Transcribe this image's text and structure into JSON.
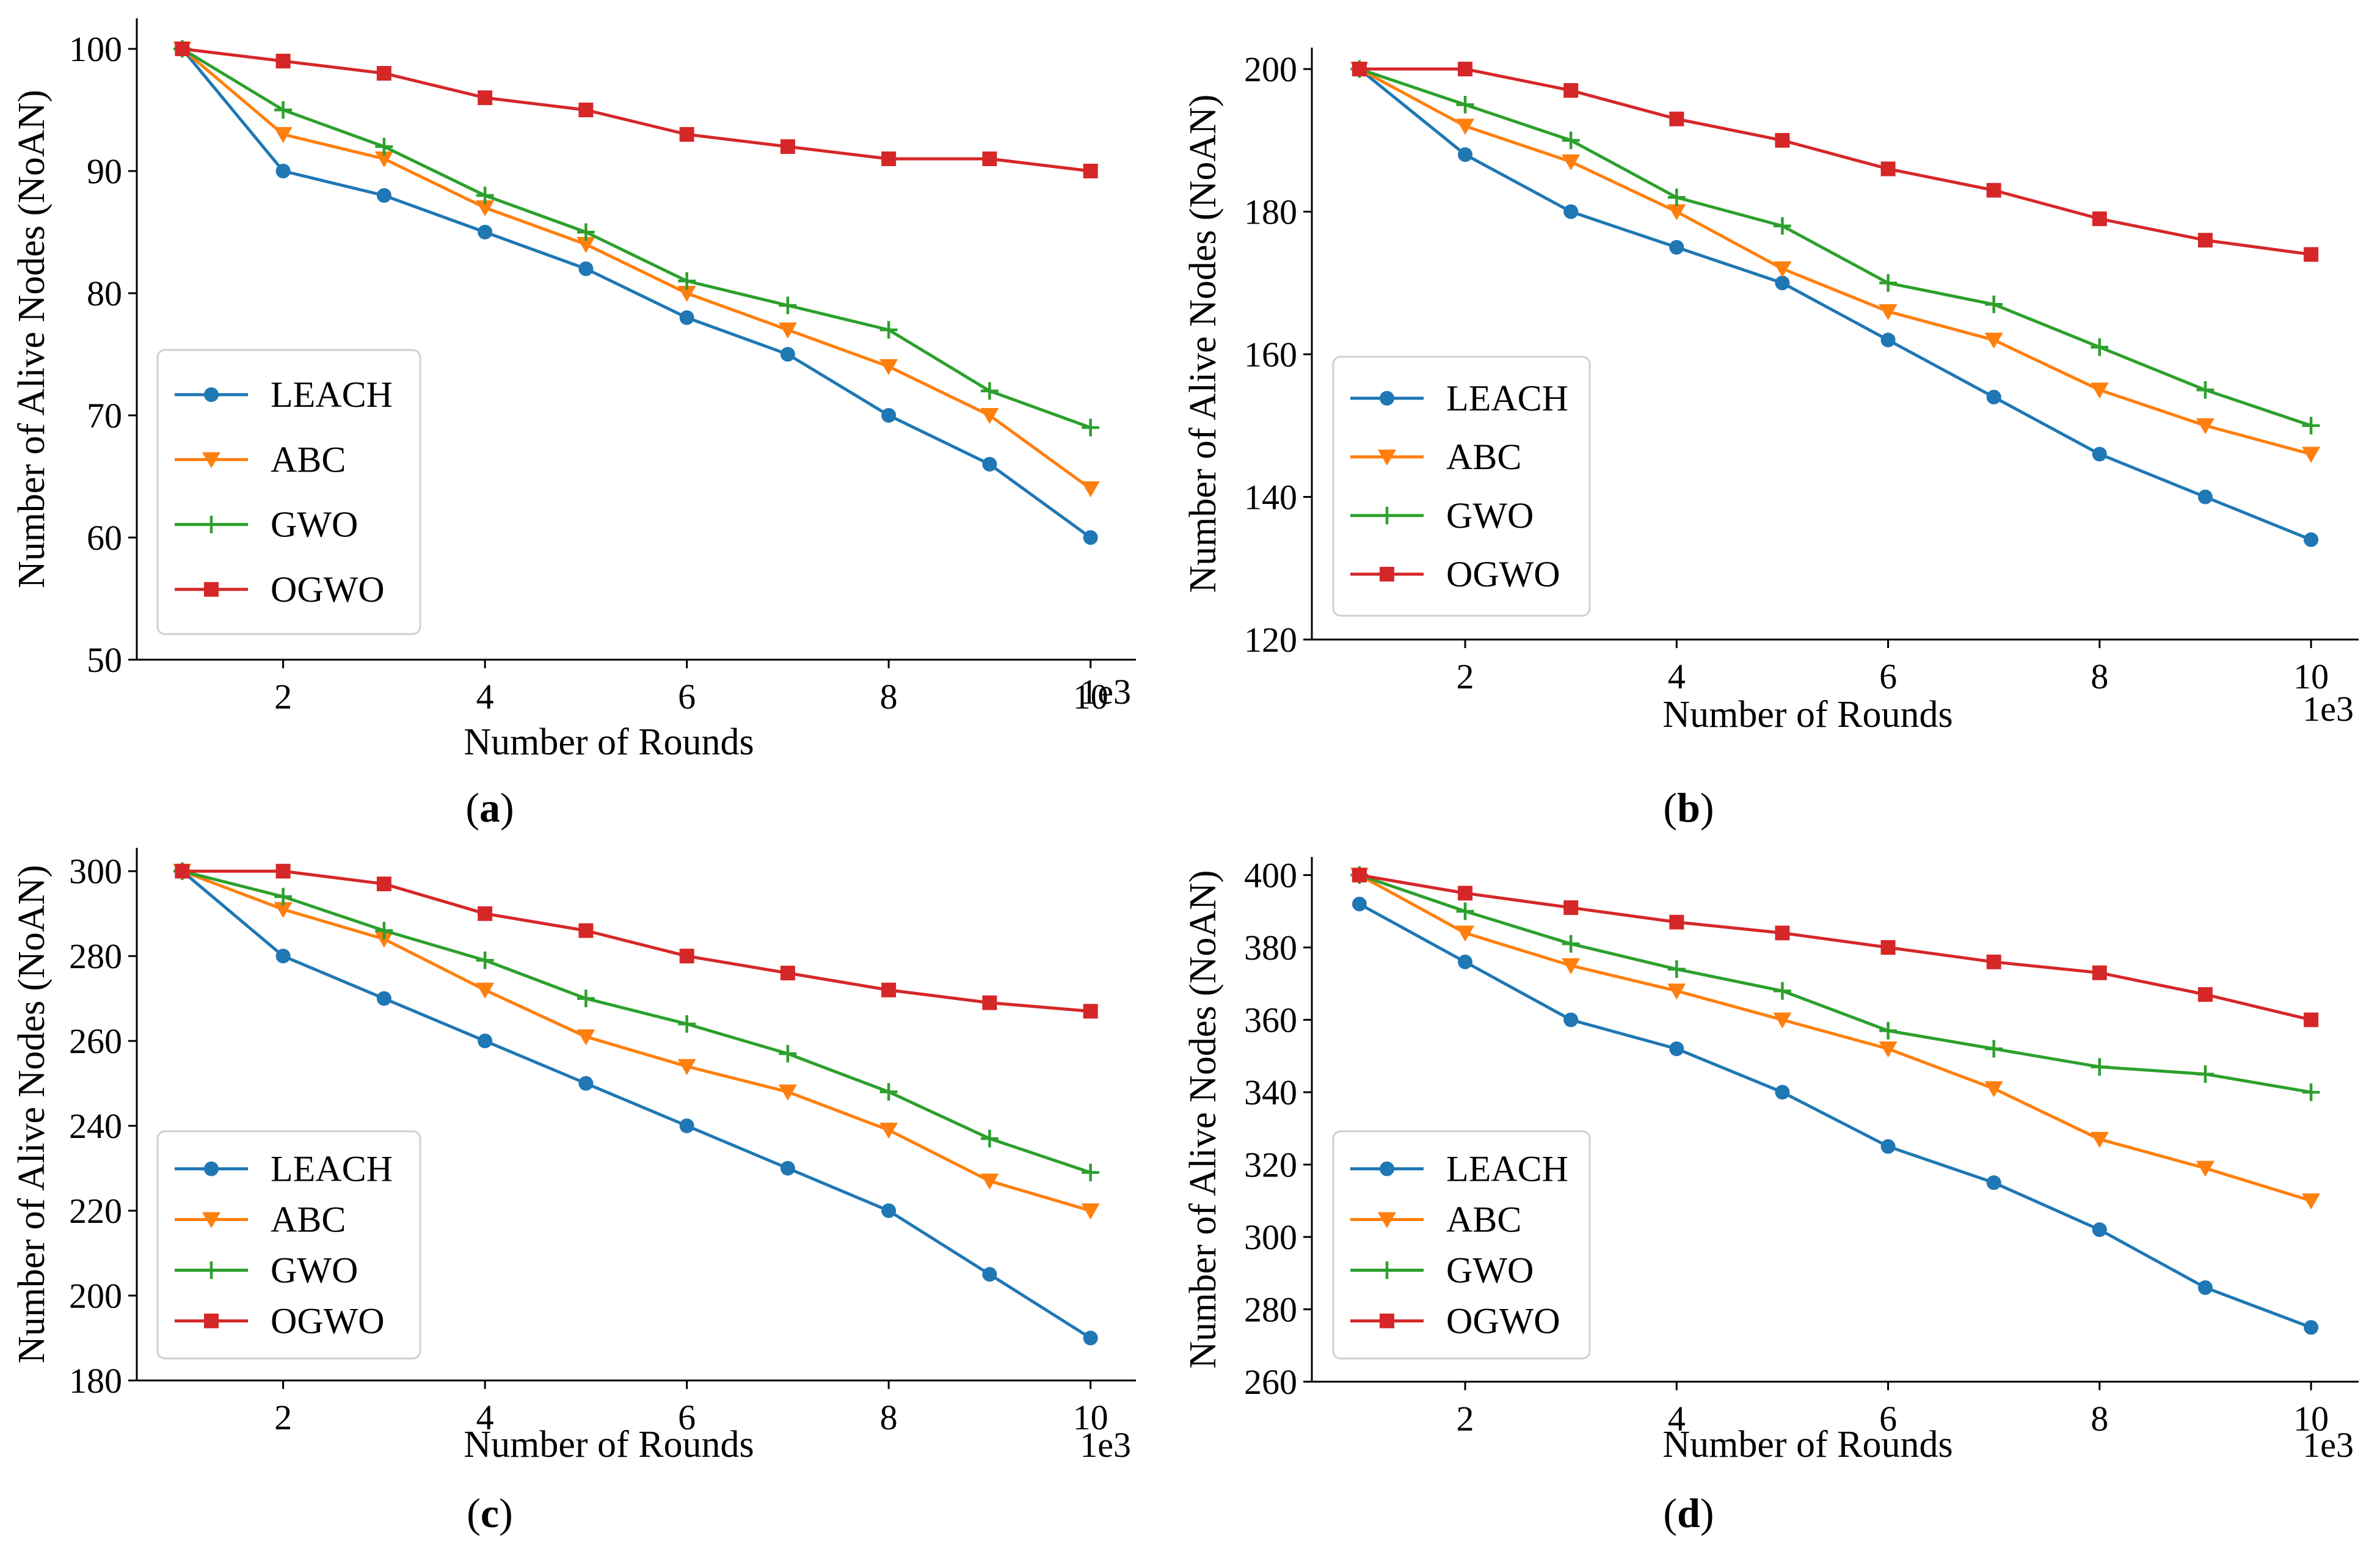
{
  "series_style": [
    {
      "name": "LEACH",
      "color": "#1f77b4",
      "marker": "circle"
    },
    {
      "name": "ABC",
      "color": "#ff7f0e",
      "marker": "triangle-down"
    },
    {
      "name": "GWO",
      "color": "#2ca02c",
      "marker": "plus"
    },
    {
      "name": "OGWO",
      "color": "#d62728",
      "marker": "square"
    }
  ],
  "chart_data": [
    {
      "type": "line",
      "panel_label": "a",
      "xlabel": "Number of Rounds",
      "ylabel": "Number of Alive Nodes (NoAN)",
      "x_offset_text": "1e3",
      "x": [
        1,
        2,
        3,
        4,
        5,
        6,
        7,
        8,
        9,
        10
      ],
      "xticks": [
        2,
        4,
        6,
        8,
        10
      ],
      "yticks": [
        50,
        60,
        70,
        80,
        90,
        100
      ],
      "xlim": [
        0.55,
        10.45
      ],
      "ylim": [
        50,
        102.5
      ],
      "legend": "center-left",
      "series": [
        {
          "name": "LEACH",
          "values": [
            100,
            90,
            88,
            85,
            82,
            78,
            75,
            70,
            66,
            60
          ]
        },
        {
          "name": "ABC",
          "values": [
            100,
            93,
            91,
            87,
            84,
            80,
            77,
            74,
            70,
            64
          ]
        },
        {
          "name": "GWO",
          "values": [
            100,
            95,
            92,
            88,
            85,
            81,
            79,
            77,
            72,
            69
          ]
        },
        {
          "name": "OGWO",
          "values": [
            100,
            99,
            98,
            96,
            95,
            93,
            92,
            91,
            91,
            90
          ]
        }
      ]
    },
    {
      "type": "line",
      "panel_label": "b",
      "xlabel": "Number of Rounds",
      "ylabel": "Number of Alive Nodes (NoAN)",
      "x_offset_text": "1e3",
      "x": [
        1,
        2,
        3,
        4,
        5,
        6,
        7,
        8,
        9,
        10
      ],
      "xticks": [
        2,
        4,
        6,
        8,
        10
      ],
      "yticks": [
        120,
        140,
        160,
        180,
        200
      ],
      "xlim": [
        0.55,
        10.45
      ],
      "ylim": [
        120,
        203
      ],
      "legend": "center-left",
      "series": [
        {
          "name": "LEACH",
          "values": [
            200,
            188,
            180,
            175,
            170,
            162,
            154,
            146,
            140,
            134
          ]
        },
        {
          "name": "ABC",
          "values": [
            200,
            192,
            187,
            180,
            172,
            166,
            162,
            155,
            150,
            146
          ]
        },
        {
          "name": "GWO",
          "values": [
            200,
            195,
            190,
            182,
            178,
            170,
            167,
            161,
            155,
            150
          ]
        },
        {
          "name": "OGWO",
          "values": [
            200,
            200,
            197,
            193,
            190,
            186,
            183,
            179,
            176,
            174
          ]
        }
      ]
    },
    {
      "type": "line",
      "panel_label": "c",
      "xlabel": "Number of Rounds",
      "ylabel": "Number of Alive Nodes (NoAN)",
      "x_offset_text": "1e3",
      "x": [
        1,
        2,
        3,
        4,
        5,
        6,
        7,
        8,
        9,
        10
      ],
      "xticks": [
        2,
        4,
        6,
        8,
        10
      ],
      "yticks": [
        180,
        200,
        220,
        240,
        260,
        280,
        300
      ],
      "xlim": [
        0.55,
        10.45
      ],
      "ylim": [
        180,
        305.5
      ],
      "legend": "lower-left",
      "series": [
        {
          "name": "LEACH",
          "values": [
            300,
            280,
            270,
            260,
            250,
            240,
            230,
            220,
            205,
            190
          ]
        },
        {
          "name": "ABC",
          "values": [
            300,
            291,
            284,
            272,
            261,
            254,
            248,
            239,
            227,
            220
          ]
        },
        {
          "name": "GWO",
          "values": [
            300,
            294,
            286,
            279,
            270,
            264,
            257,
            248,
            237,
            229
          ]
        },
        {
          "name": "OGWO",
          "values": [
            300,
            300,
            297,
            290,
            286,
            280,
            276,
            272,
            269,
            267
          ]
        }
      ]
    },
    {
      "type": "line",
      "panel_label": "d",
      "xlabel": "Number of Rounds",
      "ylabel": "Number of Alive Nodes (NoAN)",
      "x_offset_text": "1e3",
      "x": [
        1,
        2,
        3,
        4,
        5,
        6,
        7,
        8,
        9,
        10
      ],
      "xticks": [
        2,
        4,
        6,
        8,
        10
      ],
      "yticks": [
        260,
        280,
        300,
        320,
        340,
        360,
        380,
        400
      ],
      "xlim": [
        0.55,
        10.45
      ],
      "ylim": [
        260,
        405
      ],
      "legend": "lower-left",
      "series": [
        {
          "name": "LEACH",
          "values": [
            392,
            376,
            360,
            352,
            340,
            325,
            315,
            302,
            286,
            275
          ]
        },
        {
          "name": "ABC",
          "values": [
            400,
            384,
            375,
            368,
            360,
            352,
            341,
            327,
            319,
            310
          ]
        },
        {
          "name": "GWO",
          "values": [
            400,
            390,
            381,
            374,
            368,
            357,
            352,
            347,
            345,
            340
          ]
        },
        {
          "name": "OGWO",
          "values": [
            400,
            395,
            391,
            387,
            384,
            380,
            376,
            373,
            367,
            360
          ]
        }
      ]
    }
  ]
}
